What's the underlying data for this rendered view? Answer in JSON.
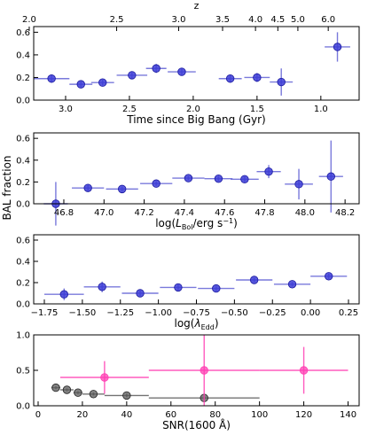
{
  "figure": {
    "shared_ylabel": "BAL fraction"
  },
  "colors": {
    "blue": "#3b3bd6",
    "blue_bar": "#6b6bd8",
    "magenta": "#ff3fb3",
    "gray": "#5a5a5a"
  },
  "chart_data": [
    {
      "type": "scatter",
      "xlabel": "Time since Big Bang (Gyr)",
      "ylabel": "",
      "xlim": [
        3.25,
        0.7
      ],
      "ylim": [
        0,
        0.65
      ],
      "x_ticks": [
        3.0,
        2.5,
        2.0,
        1.5,
        1.0
      ],
      "x_tick_labels": [
        "3.0",
        "2.5",
        "2.0",
        "1.5",
        "1.0"
      ],
      "y_ticks": [
        0,
        0.2,
        0.4,
        0.6
      ],
      "y_tick_labels": [
        "0.0",
        "0.2",
        "0.4",
        "0.6"
      ],
      "top_axis": {
        "label": "z",
        "ticks": [
          3.285,
          2.6,
          2.114,
          1.77,
          1.512,
          1.337,
          1.18,
          0.942
        ],
        "tick_labels": [
          "2.0",
          "2.5",
          "3.0",
          "3.5",
          "4.0",
          "4.5",
          "5.0",
          "6.0"
        ]
      },
      "series": [
        {
          "color": "blue",
          "points": [
            {
              "x": 3.11,
              "y": 0.19,
              "xerr": 0.14,
              "yerr": 0.03
            },
            {
              "x": 2.88,
              "y": 0.14,
              "xerr": 0.09,
              "yerr": 0.025
            },
            {
              "x": 2.71,
              "y": 0.155,
              "xerr": 0.09,
              "yerr": 0.025
            },
            {
              "x": 2.48,
              "y": 0.22,
              "xerr": 0.12,
              "yerr": 0.03
            },
            {
              "x": 2.29,
              "y": 0.28,
              "xerr": 0.08,
              "yerr": 0.04
            },
            {
              "x": 2.09,
              "y": 0.25,
              "xerr": 0.11,
              "yerr": 0.035
            },
            {
              "x": 1.71,
              "y": 0.19,
              "xerr": 0.09,
              "yerr": 0.03
            },
            {
              "x": 1.5,
              "y": 0.2,
              "xerr": 0.1,
              "yerr": 0.04
            },
            {
              "x": 1.31,
              "y": 0.16,
              "xerr": 0.09,
              "yerr": 0.12
            },
            {
              "x": 0.87,
              "y": 0.47,
              "xerr": 0.1,
              "yerr": 0.13
            }
          ]
        }
      ]
    },
    {
      "type": "scatter",
      "xlabel": "log(L_Bol/erg s^-1)",
      "ylabel": "",
      "xlim": [
        46.65,
        48.27
      ],
      "ylim": [
        0,
        0.65
      ],
      "x_ticks": [
        46.8,
        47.0,
        47.2,
        47.4,
        47.6,
        47.8,
        48.0,
        48.2
      ],
      "x_tick_labels": [
        "46.8",
        "47.0",
        "47.2",
        "47.4",
        "47.6",
        "47.8",
        "48.0",
        "48.2"
      ],
      "y_ticks": [
        0,
        0.2,
        0.4,
        0.6
      ],
      "y_tick_labels": [
        "0.0",
        "0.2",
        "0.4",
        "0.6"
      ],
      "series": [
        {
          "color": "blue",
          "points": [
            {
              "x": 46.76,
              "y": 0.0,
              "xerr": 0.06,
              "yerr": 0.2
            },
            {
              "x": 46.92,
              "y": 0.145,
              "xerr": 0.08,
              "yerr": 0.03
            },
            {
              "x": 47.09,
              "y": 0.135,
              "xerr": 0.08,
              "yerr": 0.02
            },
            {
              "x": 47.26,
              "y": 0.185,
              "xerr": 0.08,
              "yerr": 0.02
            },
            {
              "x": 47.42,
              "y": 0.235,
              "xerr": 0.08,
              "yerr": 0.02
            },
            {
              "x": 47.57,
              "y": 0.23,
              "xerr": 0.07,
              "yerr": 0.02
            },
            {
              "x": 47.7,
              "y": 0.225,
              "xerr": 0.07,
              "yerr": 0.025
            },
            {
              "x": 47.82,
              "y": 0.295,
              "xerr": 0.06,
              "yerr": 0.06
            },
            {
              "x": 47.97,
              "y": 0.18,
              "xerr": 0.07,
              "yerr": 0.14
            },
            {
              "x": 48.13,
              "y": 0.25,
              "xerr": 0.06,
              "yerr": 0.33
            }
          ]
        }
      ]
    },
    {
      "type": "scatter",
      "xlabel": "log(λ_Edd)",
      "ylabel": "",
      "xlim": [
        -1.82,
        0.32
      ],
      "ylim": [
        0,
        0.65
      ],
      "x_ticks": [
        -1.75,
        -1.5,
        -1.25,
        -1.0,
        -0.75,
        -0.5,
        -0.25,
        0.0,
        0.25
      ],
      "x_tick_labels": [
        "−1.75",
        "−1.50",
        "−1.25",
        "−1.00",
        "−0.75",
        "−0.50",
        "−0.25",
        "0.00",
        "0.25"
      ],
      "y_ticks": [
        0,
        0.2,
        0.4,
        0.6
      ],
      "y_tick_labels": [
        "0.0",
        "0.2",
        "0.4",
        "0.6"
      ],
      "series": [
        {
          "color": "blue",
          "points": [
            {
              "x": -1.62,
              "y": 0.09,
              "xerr": 0.13,
              "yerr": 0.055
            },
            {
              "x": -1.37,
              "y": 0.16,
              "xerr": 0.12,
              "yerr": 0.05
            },
            {
              "x": -1.12,
              "y": 0.1,
              "xerr": 0.12,
              "yerr": 0.025
            },
            {
              "x": -0.87,
              "y": 0.155,
              "xerr": 0.12,
              "yerr": 0.025
            },
            {
              "x": -0.62,
              "y": 0.145,
              "xerr": 0.12,
              "yerr": 0.02
            },
            {
              "x": -0.37,
              "y": 0.225,
              "xerr": 0.12,
              "yerr": 0.02
            },
            {
              "x": -0.12,
              "y": 0.185,
              "xerr": 0.12,
              "yerr": 0.02
            },
            {
              "x": 0.12,
              "y": 0.26,
              "xerr": 0.12,
              "yerr": 0.025
            }
          ]
        }
      ]
    },
    {
      "type": "scatter",
      "xlabel": "SNR(1600 Å)",
      "ylabel": "",
      "xlim": [
        -2,
        145
      ],
      "ylim": [
        0,
        1.0
      ],
      "x_ticks": [
        0,
        20,
        40,
        60,
        80,
        100,
        120,
        140
      ],
      "x_tick_labels": [
        "0",
        "20",
        "40",
        "60",
        "80",
        "100",
        "120",
        "140"
      ],
      "y_ticks": [
        0,
        0.5,
        1.0
      ],
      "y_tick_labels": [
        "0.0",
        "0.5",
        "1.0"
      ],
      "series": [
        {
          "color": "gray",
          "points": [
            {
              "x": 8,
              "y": 0.255,
              "xerr": 2,
              "yerr": 0.02
            },
            {
              "x": 13,
              "y": 0.225,
              "xerr": 3,
              "yerr": 0.02
            },
            {
              "x": 18,
              "y": 0.185,
              "xerr": 2,
              "yerr": 0.02
            },
            {
              "x": 25,
              "y": 0.165,
              "xerr": 5,
              "yerr": 0.02
            },
            {
              "x": 40,
              "y": 0.145,
              "xerr": 10,
              "yerr": 0.025
            },
            {
              "x": 75,
              "y": 0.11,
              "xerr": 25,
              "yerr": 0.04
            }
          ]
        },
        {
          "color": "magenta",
          "points": [
            {
              "x": 30,
              "y": 0.4,
              "xerr": 20,
              "yerr": 0.23
            },
            {
              "x": 75,
              "y": 0.5,
              "xerr": 25,
              "yerr": 0.5
            },
            {
              "x": 120,
              "y": 0.5,
              "xerr": 20,
              "yerr": 0.33
            }
          ]
        }
      ]
    }
  ]
}
